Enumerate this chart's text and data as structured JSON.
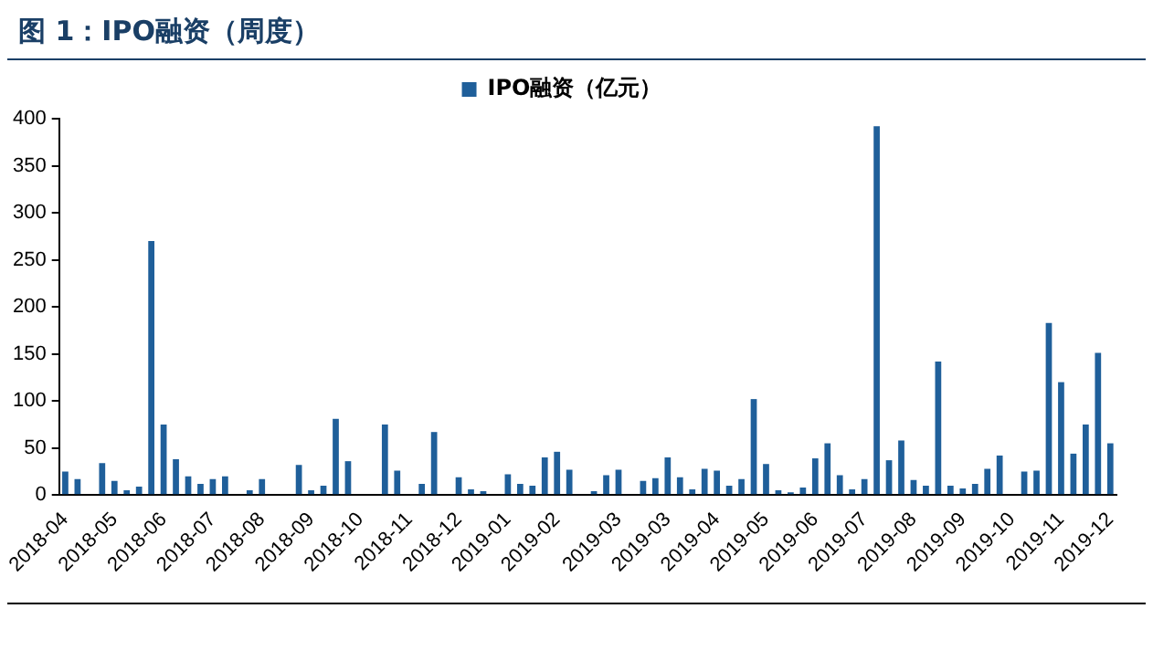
{
  "chart_data": {
    "type": "bar",
    "title": "图 1：IPO融资（周度）",
    "categories": [
      "2018-04",
      null,
      null,
      null,
      "2018-05",
      null,
      null,
      null,
      "2018-06",
      null,
      null,
      null,
      "2018-07",
      null,
      null,
      null,
      "2018-08",
      null,
      null,
      null,
      "2018-09",
      null,
      null,
      null,
      "2018-10",
      null,
      null,
      null,
      "2018-11",
      null,
      null,
      null,
      "2018-12",
      null,
      null,
      null,
      "2019-01",
      null,
      null,
      null,
      "2019-02",
      null,
      null,
      null,
      null,
      "2019-03",
      null,
      null,
      null,
      "2019-03",
      null,
      null,
      null,
      "2019-04",
      null,
      null,
      null,
      "2019-05",
      null,
      null,
      null,
      "2019-06",
      null,
      null,
      null,
      "2019-07",
      null,
      null,
      null,
      "2019-08",
      null,
      null,
      null,
      "2019-09",
      null,
      null,
      null,
      "2019-10",
      null,
      null,
      null,
      "2019-11",
      null,
      null,
      null,
      "2019-12"
    ],
    "series": [
      {
        "name": "IPO融资（亿元）",
        "color": "#1f5f9a",
        "values": [
          25,
          17,
          0,
          34,
          15,
          5,
          9,
          270,
          75,
          38,
          20,
          12,
          17,
          20,
          0,
          5,
          17,
          0,
          0,
          32,
          5,
          10,
          81,
          36,
          0,
          0,
          75,
          26,
          0,
          12,
          67,
          0,
          19,
          6,
          4,
          0,
          22,
          12,
          10,
          40,
          46,
          27,
          0,
          4,
          21,
          27,
          0,
          15,
          18,
          40,
          19,
          6,
          28,
          26,
          10,
          17,
          102,
          33,
          5,
          3,
          8,
          39,
          55,
          21,
          6,
          17,
          392,
          37,
          58,
          16,
          10,
          142,
          10,
          7,
          12,
          28,
          42,
          0,
          25,
          26,
          183,
          120,
          44,
          75,
          151,
          55
        ]
      }
    ],
    "ylim": [
      0,
      400
    ],
    "yticks": [
      0,
      50,
      100,
      150,
      200,
      250,
      300,
      350,
      400
    ],
    "grid": false,
    "legend": "top"
  }
}
